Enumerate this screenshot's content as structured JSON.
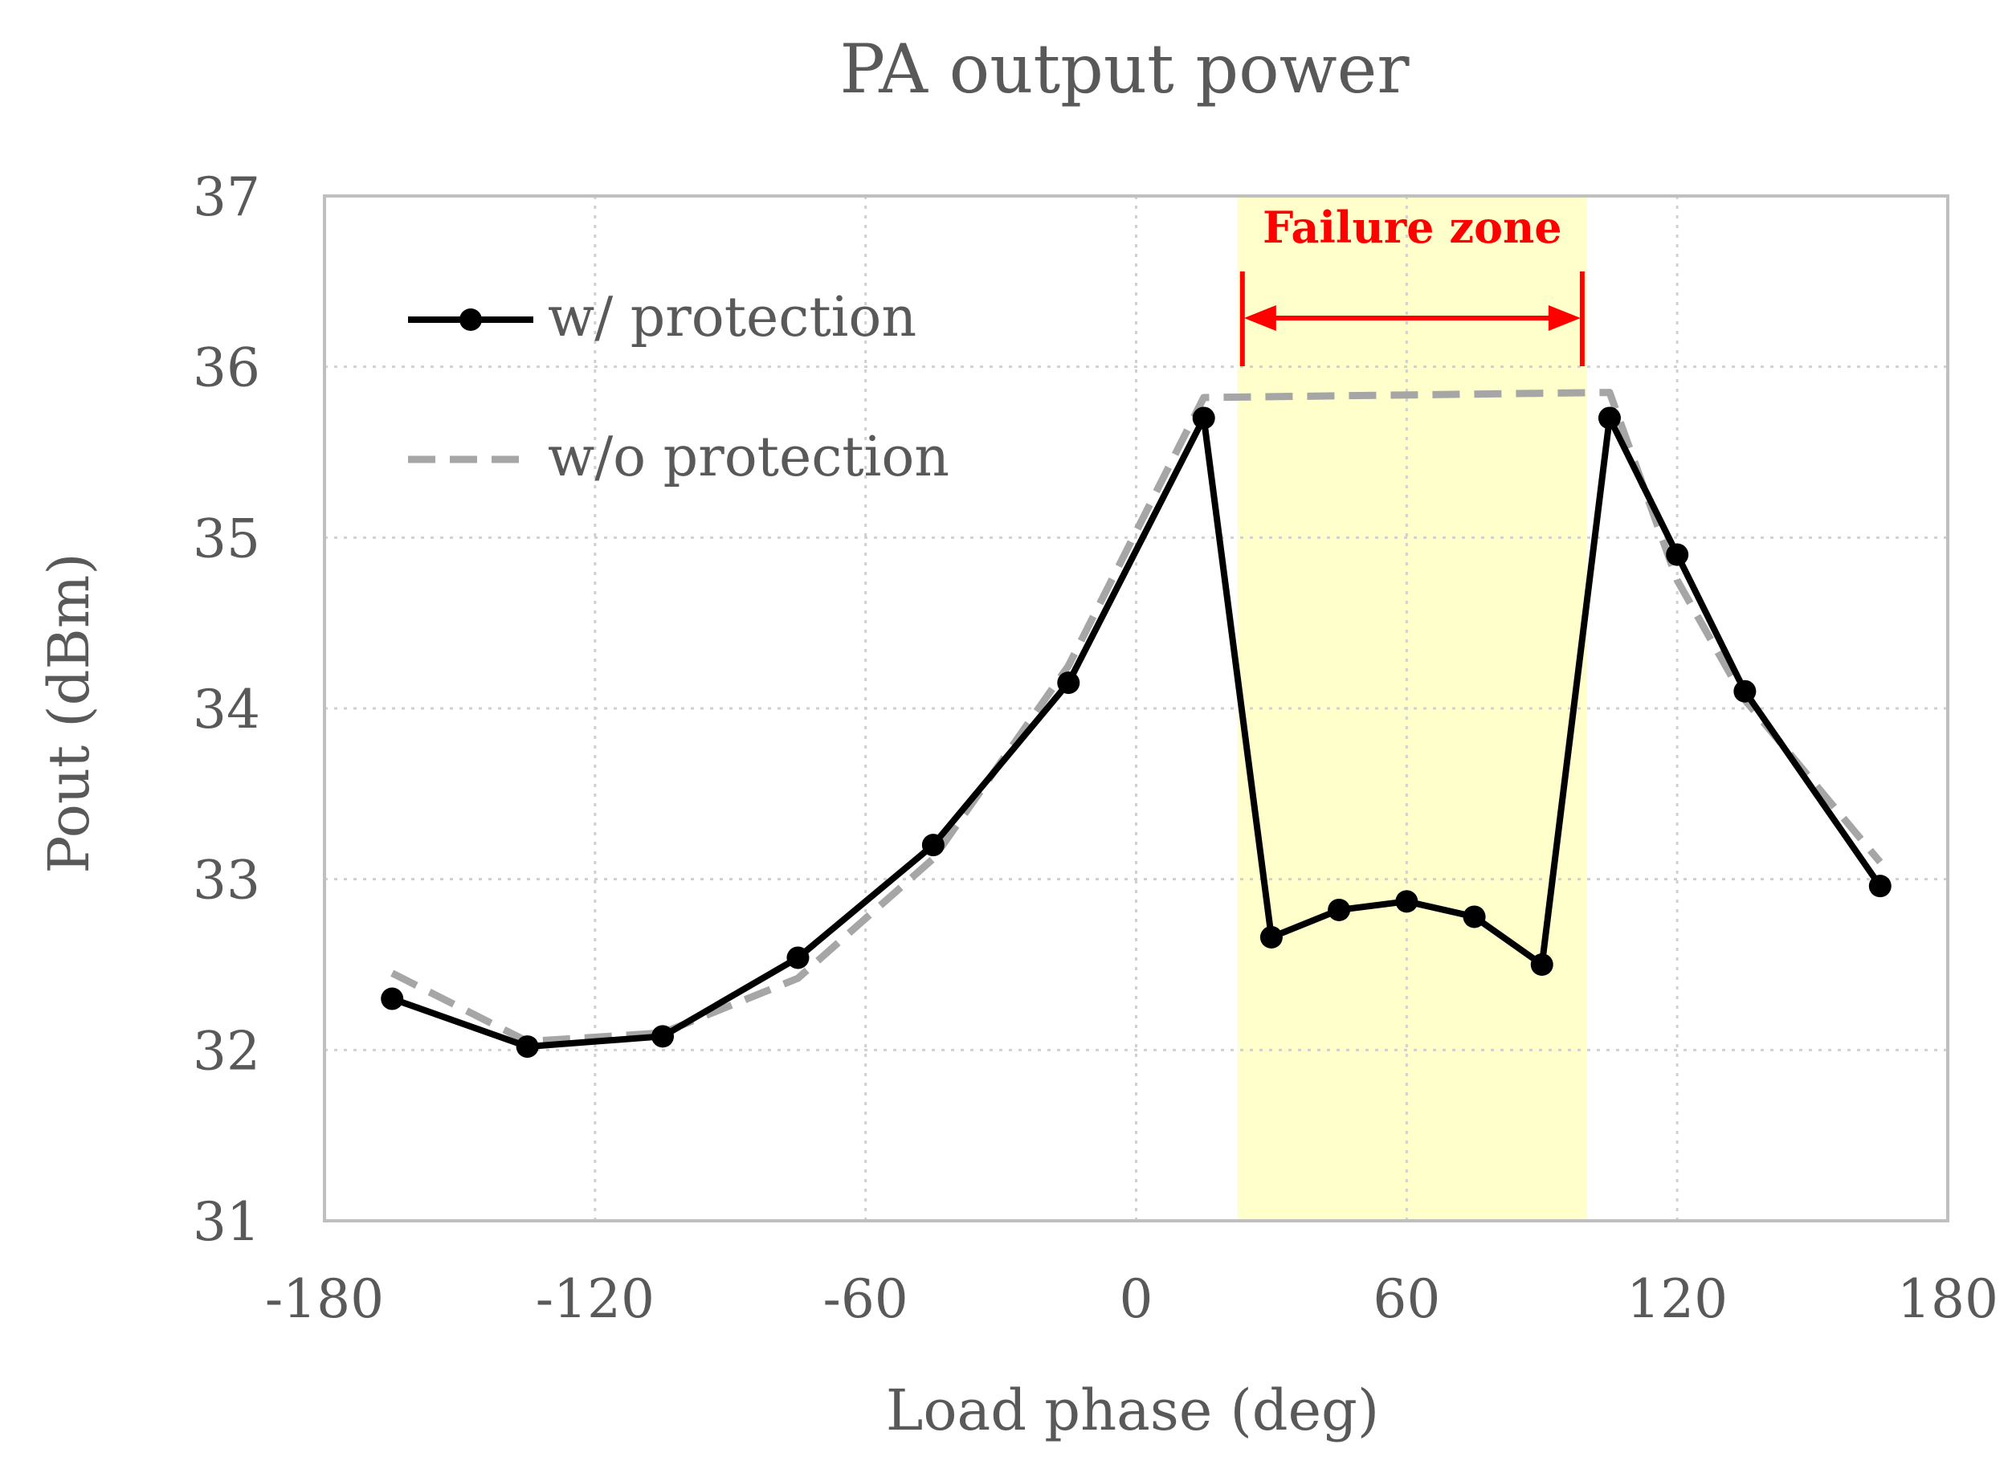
{
  "chart_data": {
    "type": "line",
    "title": "PA output power",
    "xlabel": "Load phase (deg)",
    "ylabel": "Pout (dBm)",
    "xlim": [
      -180,
      180
    ],
    "ylim": [
      31,
      37
    ],
    "xticks": [
      -180,
      -120,
      -60,
      0,
      60,
      120,
      180
    ],
    "yticks": [
      31,
      32,
      33,
      34,
      35,
      36,
      37
    ],
    "xtick_labels": [
      "-180",
      "-120",
      "-60",
      "0",
      "60",
      "120",
      "180"
    ],
    "ytick_labels": [
      "31",
      "32",
      "33",
      "34",
      "35",
      "36",
      "37"
    ],
    "grid": true,
    "legend_position": "top-left",
    "series": [
      {
        "name": "w/ protection",
        "style": "solid-markers",
        "color": "#000000",
        "x": [
          -165,
          -135,
          -105,
          -75,
          -45,
          -15,
          15,
          30,
          45,
          60,
          75,
          90,
          105,
          120,
          135,
          165
        ],
        "y": [
          32.3,
          32.02,
          32.08,
          32.54,
          33.2,
          34.15,
          35.7,
          32.66,
          32.82,
          32.87,
          32.78,
          32.5,
          35.7,
          34.9,
          34.1,
          32.96
        ]
      },
      {
        "name": "w/o protection",
        "style": "dashed",
        "color": "#a6a6a6",
        "x": [
          -165,
          -135,
          -105,
          -75,
          -45,
          -15,
          15,
          105,
          120,
          135,
          165
        ],
        "y": [
          32.45,
          32.05,
          32.1,
          32.42,
          33.12,
          34.25,
          35.82,
          35.85,
          34.75,
          34.05,
          33.1
        ]
      }
    ],
    "annotations": [
      {
        "text": "Failure zone",
        "color": "#ff0000",
        "x_range": [
          22.5,
          100
        ],
        "shade_color": "#ffffcc"
      }
    ]
  }
}
